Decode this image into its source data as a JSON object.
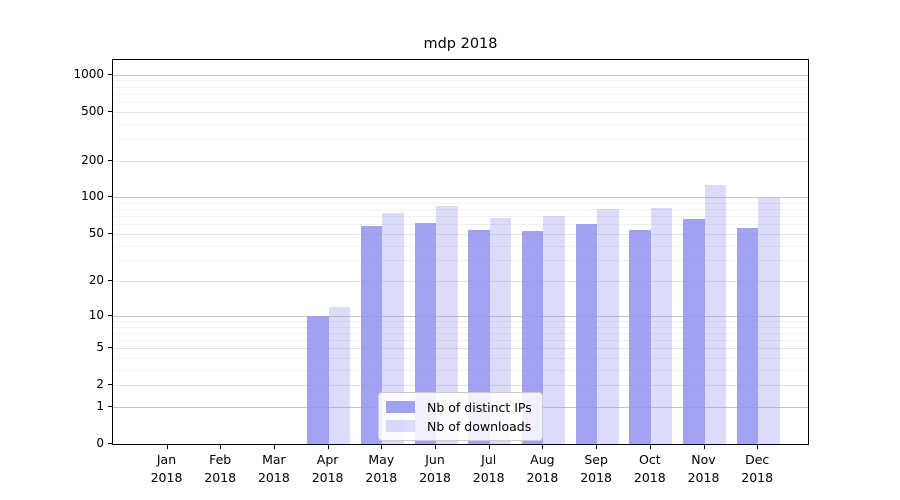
{
  "chart_data": {
    "type": "bar",
    "title": "mdp 2018",
    "categories": [
      "Jan 2018",
      "Feb 2018",
      "Mar 2018",
      "Apr 2018",
      "May 2018",
      "Jun 2018",
      "Jul 2018",
      "Aug 2018",
      "Sep 2018",
      "Oct 2018",
      "Nov 2018",
      "Dec 2018"
    ],
    "series": [
      {
        "name": "Nb of distinct IPs",
        "color": "rgba(146,146,240,0.85)",
        "values": [
          0,
          0,
          0,
          10,
          58,
          62,
          54,
          53,
          60,
          54,
          67,
          56
        ]
      },
      {
        "name": "Nb of downloads",
        "color": "rgba(146,146,240,0.33)",
        "values": [
          0,
          0,
          0,
          12,
          75,
          85,
          68,
          70,
          81,
          82,
          127,
          98
        ]
      }
    ],
    "xlabel": "",
    "ylabel": "",
    "scale": "log10(1+v)",
    "ylim": [
      0,
      1318
    ],
    "yticks_labeled": [
      0,
      1,
      2,
      5,
      10,
      20,
      50,
      100,
      200,
      500,
      1000
    ],
    "yticks_mid": [
      2,
      5,
      20,
      50,
      200,
      500
    ],
    "yticks_minor": [
      3,
      4,
      6,
      7,
      8,
      9,
      30,
      40,
      60,
      70,
      80,
      90,
      300,
      400,
      600,
      700,
      800,
      900
    ],
    "grid": true,
    "legend_position": "lower center",
    "colors": {
      "major_grid": "#c6c6c6",
      "mid_grid": "#e2e2e2",
      "minor_grid": "#efefef",
      "axis": "#000000",
      "background": "#ffffff"
    }
  }
}
